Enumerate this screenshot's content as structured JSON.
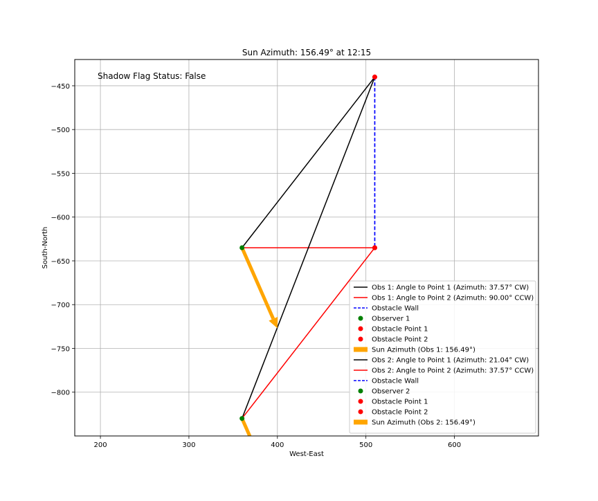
{
  "chart_data": {
    "type": "line",
    "title": "Sun Azimuth: 156.49° at 12:15",
    "xlabel": "West-East",
    "ylabel": "South-North",
    "xlim": [
      171,
      695
    ],
    "ylim": [
      -850,
      -420
    ],
    "xticks": [
      200,
      300,
      400,
      500,
      600
    ],
    "yticks": [
      -450,
      -500,
      -550,
      -600,
      -650,
      -700,
      -750,
      -800
    ],
    "xtick_labels": [
      "200",
      "300",
      "400",
      "500",
      "600"
    ],
    "ytick_labels": [
      "−450",
      "−500",
      "−550",
      "−600",
      "−650",
      "−700",
      "−750",
      "−800"
    ],
    "grid": true,
    "annotation": {
      "text": "Shadow Flag Status: False",
      "color": "#ff0000"
    },
    "legend_position": "lower right",
    "colors": {
      "black": "#000000",
      "red": "#ff0000",
      "blue": "#0000ff",
      "green": "#008000",
      "orange": "#ffa500"
    },
    "series": [
      {
        "name": "Obs 1: Angle to Point 1 (Azimuth: 37.57° CW)",
        "kind": "line",
        "color": "#000000",
        "x": [
          360,
          510
        ],
        "y": [
          -635,
          -440
        ]
      },
      {
        "name": "Obs 1: Angle to Point 2 (Azimuth: 90.00° CCW)",
        "kind": "line",
        "color": "#ff0000",
        "x": [
          360,
          510
        ],
        "y": [
          -635,
          -635
        ]
      },
      {
        "name": "Obstacle Wall",
        "kind": "dashed",
        "color": "#0000ff",
        "x": [
          510,
          510
        ],
        "y": [
          -440,
          -635
        ]
      },
      {
        "name": "Observer 1",
        "kind": "point",
        "color": "#008000",
        "x": [
          360
        ],
        "y": [
          -635
        ]
      },
      {
        "name": "Obstacle Point 1",
        "kind": "point",
        "color": "#ff0000",
        "x": [
          510
        ],
        "y": [
          -440
        ]
      },
      {
        "name": "Obstacle Point 2",
        "kind": "point",
        "color": "#ff0000",
        "x": [
          510
        ],
        "y": [
          -635
        ]
      },
      {
        "name": "Sun Azimuth (Obs 1: 156.49°)",
        "kind": "arrow",
        "color": "#ffa500",
        "x": [
          360,
          400
        ],
        "y": [
          -635,
          -727
        ]
      },
      {
        "name": "Obs 2: Angle to Point 1 (Azimuth: 21.04° CW)",
        "kind": "line",
        "color": "#000000",
        "x": [
          360,
          510
        ],
        "y": [
          -830,
          -440
        ]
      },
      {
        "name": "Obs 2: Angle to Point 2 (Azimuth: 37.57° CCW)",
        "kind": "line",
        "color": "#ff0000",
        "x": [
          360,
          510
        ],
        "y": [
          -830,
          -635
        ]
      },
      {
        "name": "Obstacle Wall",
        "kind": "dashed",
        "color": "#0000ff",
        "x": [
          510,
          510
        ],
        "y": [
          -440,
          -635
        ]
      },
      {
        "name": "Observer 2",
        "kind": "point",
        "color": "#008000",
        "x": [
          360
        ],
        "y": [
          -830
        ]
      },
      {
        "name": "Obstacle Point 1",
        "kind": "point",
        "color": "#ff0000",
        "x": [
          510
        ],
        "y": [
          -440
        ]
      },
      {
        "name": "Obstacle Point 2",
        "kind": "point",
        "color": "#ff0000",
        "x": [
          510
        ],
        "y": [
          -635
        ]
      },
      {
        "name": "Sun Azimuth (Obs 2: 156.49°)",
        "kind": "arrow",
        "color": "#ffa500",
        "x": [
          360,
          400
        ],
        "y": [
          -830,
          -922
        ]
      }
    ]
  }
}
